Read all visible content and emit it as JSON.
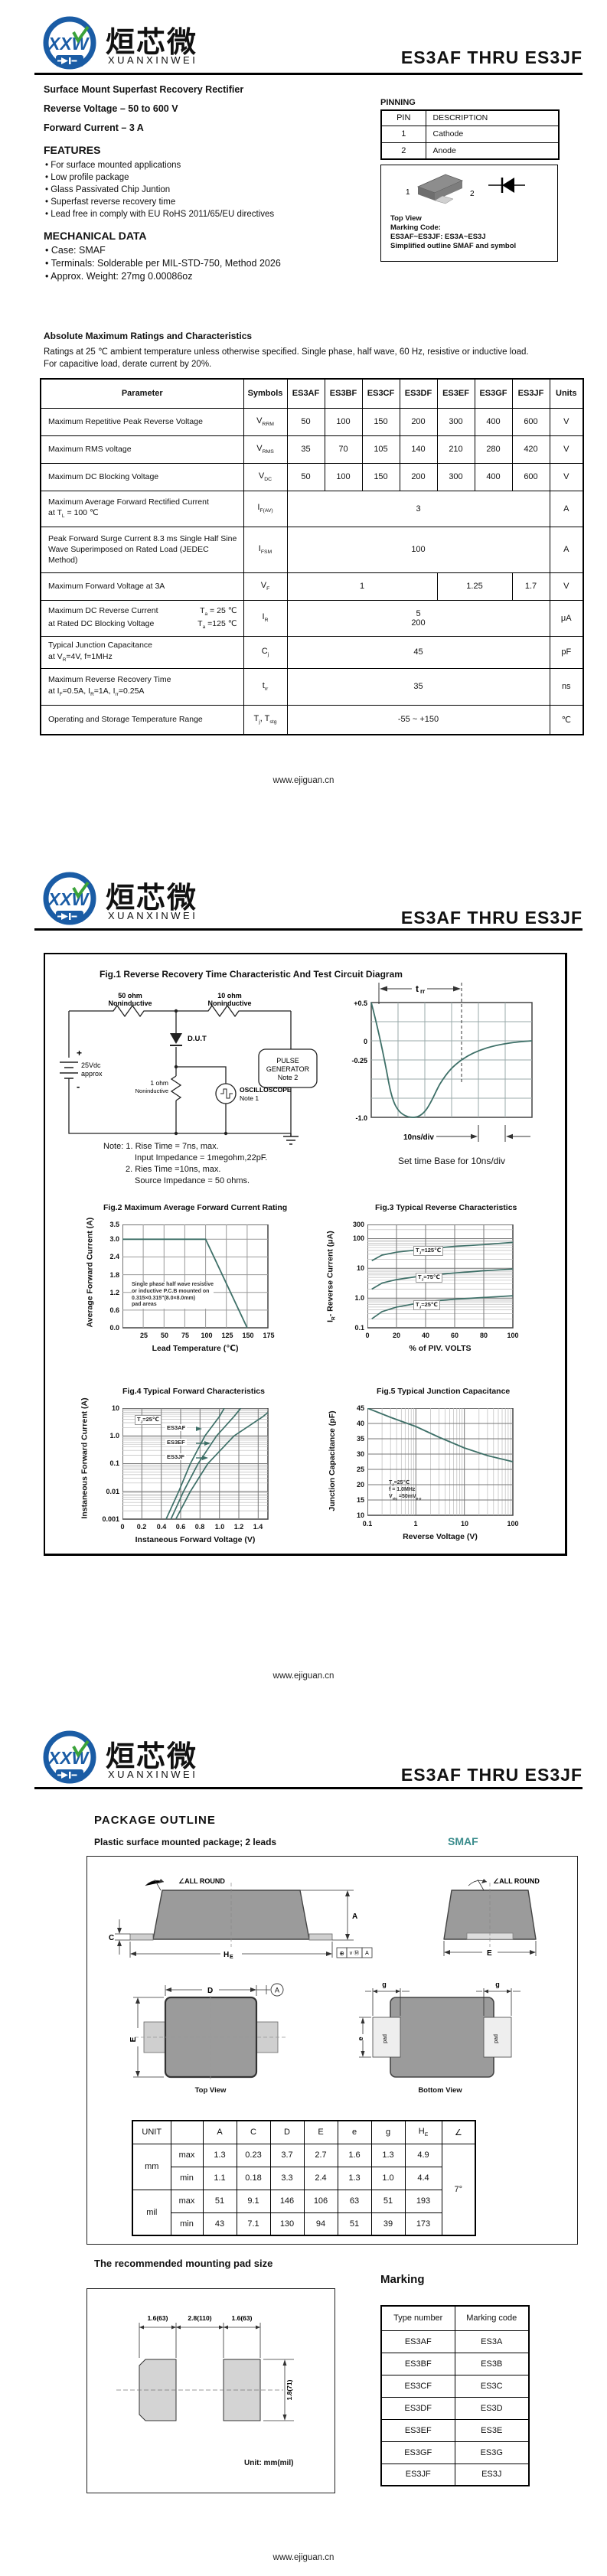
{
  "brand": {
    "cn": "烜芯微",
    "en": "XUANXINWEI",
    "logo_letters": "XXW"
  },
  "doc_title": "ES3AF THRU ES3JF",
  "footer_url": "www.ejiguan.cn",
  "colors": {
    "accent_blue": "#1a5ca5",
    "accent_green": "#3aa23a",
    "curve_teal": "#3e7068",
    "smaf_teal": "#3a8c8c"
  },
  "p1": {
    "product_title": "Surface Mount Superfast Recovery Rectifier",
    "spec_line1": "Reverse Voltage – 50 to 600 V",
    "spec_line2": "Forward Current – 3 A",
    "features_heading": "FEATURES",
    "features": [
      "For surface mounted applications",
      "Low profile package",
      "Glass Passivated Chip Juntion",
      "Superfast reverse recovery time",
      "Lead free in comply with EU RoHS 2011/65/EU directives"
    ],
    "mech_heading": "MECHANICAL DATA",
    "mech": [
      "Case: SMAF",
      "Terminals: Solderable per MIL-STD-750, Method 2026",
      "Approx. Weight: 27mg  0.00086oz"
    ],
    "pinning": {
      "heading": "PINNING",
      "h1": "PIN",
      "h2": "DESCRIPTION",
      "rows": [
        [
          "1",
          "Cathode"
        ],
        [
          "2",
          "Anode"
        ]
      ]
    },
    "outline": {
      "pin1": "1",
      "pin2": "2",
      "cap1": "Top View",
      "cap2": "Marking Code:",
      "cap3": "ES3AF~ES3JF: ES3A~ES3J",
      "cap4": "Simplified outline SMAF and symbol"
    },
    "ratings": {
      "heading": "Absolute Maximum Ratings and Characteristics",
      "desc1": "Ratings at 25 ℃ ambient temperature unless otherwise specified. Single phase, half wave, 60 Hz, resistive or inductive load.",
      "desc2": "For capacitive load, derate current by 20%.",
      "headers": [
        "Parameter",
        "Symbols",
        "ES3AF",
        "ES3BF",
        "ES3CF",
        "ES3DF",
        "ES3EF",
        "ES3GF",
        "ES3JF",
        "Units"
      ],
      "r1": {
        "p": "Maximum Repetitive Peak Reverse Voltage",
        "s": "V~RRM~",
        "v": [
          "50",
          "100",
          "150",
          "200",
          "300",
          "400",
          "600"
        ],
        "u": "V"
      },
      "r2": {
        "p": "Maximum RMS voltage",
        "s": "V~RMS~",
        "v": [
          "35",
          "70",
          "105",
          "140",
          "210",
          "280",
          "420"
        ],
        "u": "V"
      },
      "r3": {
        "p": "Maximum DC Blocking Voltage",
        "s": "V~DC~",
        "v": [
          "50",
          "100",
          "150",
          "200",
          "300",
          "400",
          "600"
        ],
        "u": "V"
      },
      "r4": {
        "p1": "Maximum Average Forward Rectified Current",
        "p2": "at T~L~ = 100 ℃",
        "s": "I~F(AV)~",
        "v": "3",
        "u": "A"
      },
      "r5": {
        "p": "Peak Forward Surge Current 8.3 ms Single Half Sine Wave Superimposed on Rated Load (JEDEC Method)",
        "s": "I~FSM~",
        "v": "100",
        "u": "A"
      },
      "r6": {
        "p": "Maximum  Forward Voltage at 3A",
        "s": "V~F~",
        "v1": "1",
        "v2": "1.25",
        "v3": "1.7",
        "u": "V"
      },
      "r7": {
        "p1a": "Maximum DC Reverse Current",
        "p1b": "T~a~ = 25 ℃",
        "p2a": "at Rated DC Blocking Voltage",
        "p2b": "T~a~ =125 ℃",
        "s": "I~R~",
        "va": "5",
        "vb": "200",
        "u": "μA"
      },
      "r8": {
        "p1": "Typical Junction Capacitance",
        "p2": "at V~R~=4V, f=1MHz",
        "s": "C~j~",
        "v": "45",
        "u": "pF"
      },
      "r9": {
        "p1": "Maximum Reverse Recovery Time",
        "p2": "at I~F~=0.5A, I~R~=1A, I~rr~=0.25A",
        "s": "t~rr~",
        "v": "35",
        "u": "ns"
      },
      "r10": {
        "p": "Operating and Storage Temperature Range",
        "s": "T~j~, T~stg~",
        "v": "-55 ~ +150",
        "u": "℃"
      }
    }
  },
  "p2": {
    "fig1": {
      "title": "Fig.1  Reverse Recovery Time Characteristic And Test Circuit Diagram",
      "circuit": {
        "r1a": "50 ohm",
        "r1b": "Noninductive",
        "r2a": "10 ohm",
        "r2b": "Noninductive",
        "plus": "+",
        "bat1": "25Vdc",
        "bat2": "approx",
        "minus": "-",
        "dut": "D.U.T",
        "r3a": "1 ohm",
        "r3b": "Noninductive",
        "osc1": "OSCILLOSCOPE",
        "osc2": "Note 1",
        "pg1": "PULSE",
        "pg2": "GENERATOR",
        "pg3": "Note 2"
      },
      "wave": {
        "yt0": "+0.5",
        "yt1": "0",
        "yt2": "-0.25",
        "yt3": "-1.0",
        "trr_main": "t",
        "trr_sub": "rr",
        "div": "10ns/div",
        "caption": "Set time Base for 10ns/div"
      },
      "notes": [
        "Note: 1. Rise Time = 7ns, max.",
        "Input Impedance = 1megohm,22pF.",
        "2. Ries Time =10ns, max.",
        "Source Impedance = 50 ohms."
      ]
    },
    "fig2": {
      "title": "Fig.2  Maximum Average Forward Current Rating",
      "ylabel": "Average Forward Current (A)",
      "xlabel": "Lead Temperature (℃)",
      "yticks": [
        "3.5",
        "3.0",
        "2.4",
        "1.8",
        "1.2",
        "0.6",
        "0.0"
      ],
      "xticks": [
        "25",
        "50",
        "75",
        "100",
        "125",
        "150",
        "175"
      ],
      "ann": [
        "Single phase half wave resistive",
        "or inductive P.C.B mounted on",
        "0.315×0.315\"(8.0×8.0mm)",
        "pad  areas"
      ]
    },
    "fig3": {
      "title": "Fig.3  Typical Reverse Characteristics",
      "ylabel": "I~R~- Reverse Current (μA)",
      "xlabel": "% of PIV. VOLTS",
      "yticks": [
        "300",
        "100",
        "10",
        "1.0",
        "0.1"
      ],
      "xticks": [
        "0",
        "20",
        "40",
        "60",
        "80",
        "100"
      ],
      "l125": "T~J~=125℃",
      "l75": "T~J~=75℃",
      "l25": "T~J~=25℃"
    },
    "fig4": {
      "title": "Fig.4  Typical Forward Characteristics",
      "ylabel": "Instaneous Forward Current (A)",
      "xlabel": "Instaneous Forward Voltage (V)",
      "yticks": [
        "10",
        "1.0",
        "0.1",
        "0.01",
        "0.001"
      ],
      "xticks": [
        "0",
        "0.2",
        "0.4",
        "0.6",
        "0.8",
        "1.0",
        "1.2",
        "1.4"
      ],
      "cond": "T~J~=25℃",
      "lA": "ES3AF",
      "lE": "ES3EF",
      "lJ": "ES3JF"
    },
    "fig5": {
      "title": "Fig.5  Typical Junction Capacitance",
      "ylabel": "Junction Capacitance (pF)",
      "xlabel": "Reverse  Voltage (V)",
      "yticks": [
        "45",
        "40",
        "35",
        "30",
        "25",
        "20",
        "15",
        "10"
      ],
      "xticks": [
        "0.1",
        "1",
        "10",
        "100"
      ],
      "ann": [
        "T~J~=25℃",
        "f = 1.0MHz",
        "V~sig~ =50mV~p-p~"
      ]
    }
  },
  "p3": {
    "heading": "PACKAGE  OUTLINE",
    "sub": "Plastic surface mounted package; 2 leads",
    "pkg": "SMAF",
    "draw": {
      "allround": "∠ALL ROUND",
      "c": "C",
      "a": "A",
      "he_main": "H",
      "he_sub": "E",
      "e": "E",
      "d": "D",
      "g": "g",
      "e_low": "e",
      "pad": "pad",
      "top_view": "Top View",
      "bottom_view": "Bottom View",
      "datum": "A",
      "tol1": "⊕",
      "tol2": "v Ⓜ",
      "tol3": "A"
    },
    "dims": {
      "unit": "UNIT",
      "cols": [
        "A",
        "C",
        "D",
        "E",
        "e",
        "g",
        "H~E~",
        "∠"
      ],
      "mm": "mm",
      "mil": "mil",
      "max": "max",
      "min": "min",
      "mm_max": [
        "1.3",
        "0.23",
        "3.7",
        "2.7",
        "1.6",
        "1.3",
        "4.9"
      ],
      "mm_min": [
        "1.1",
        "0.18",
        "3.3",
        "2.4",
        "1.3",
        "1.0",
        "4.4"
      ],
      "mil_max": [
        "51",
        "9.1",
        "146",
        "106",
        "63",
        "51",
        "193"
      ],
      "mil_min": [
        "43",
        "7.1",
        "130",
        "94",
        "51",
        "39",
        "173"
      ],
      "angle": "7°"
    },
    "padout": {
      "heading": "The recommended mounting pad size",
      "d1": "1.6(63)",
      "d2": "2.8(110)",
      "d3": "1.6(63)",
      "d4": "1.8(71)",
      "unit": "Unit: mm(mil)"
    },
    "marking": {
      "heading": "Marking",
      "h1": "Type number",
      "h2": "Marking code",
      "rows": [
        [
          "ES3AF",
          "ES3A"
        ],
        [
          "ES3BF",
          "ES3B"
        ],
        [
          "ES3CF",
          "ES3C"
        ],
        [
          "ES3DF",
          "ES3D"
        ],
        [
          "ES3EF",
          "ES3E"
        ],
        [
          "ES3GF",
          "ES3G"
        ],
        [
          "ES3JF",
          "ES3J"
        ]
      ]
    }
  },
  "chart_data": [
    {
      "id": "fig1_waveform",
      "type": "line",
      "title": "Reverse Recovery Time Characteristic",
      "xlabel": "time (10ns/div)",
      "ylabel": "current (A)",
      "ylim": [
        -1.0,
        0.5
      ],
      "x": [
        0,
        5,
        10,
        15,
        20,
        25,
        30,
        40,
        50,
        60
      ],
      "values": [
        0.5,
        0.05,
        -0.5,
        -0.9,
        -1.0,
        -0.8,
        -0.55,
        -0.3,
        -0.15,
        -0.05
      ],
      "annotations": [
        "trr",
        "10ns/div",
        "Set time Base for 10ns/div"
      ]
    },
    {
      "id": "fig2",
      "type": "line",
      "title": "Maximum Average Forward Current Rating",
      "xlabel": "Lead Temperature (°C)",
      "ylabel": "Average Forward Current (A)",
      "xlim": [
        0,
        175
      ],
      "ylim": [
        0,
        3.5
      ],
      "x": [
        0,
        100,
        150
      ],
      "values": [
        3.0,
        3.0,
        0.0
      ],
      "annotation": "Single phase half wave resistive or inductive P.C.B mounted on 0.315×0.315\"(8.0×8.0mm) pad areas",
      "grid": true
    },
    {
      "id": "fig3",
      "type": "line",
      "log_y": true,
      "title": "Typical Reverse Characteristics",
      "xlabel": "% of PIV VOLTS",
      "ylabel": "IR - Reverse Current (uA)",
      "xlim": [
        0,
        100
      ],
      "ylim": [
        0.1,
        300
      ],
      "x": [
        3,
        20,
        40,
        60,
        80,
        100
      ],
      "series": [
        {
          "name": "TJ=125C",
          "values": [
            18,
            35,
            45,
            55,
            63,
            75
          ]
        },
        {
          "name": "TJ=75C",
          "values": [
            2,
            4.2,
            5.8,
            7,
            8.3,
            9.5
          ]
        },
        {
          "name": "TJ=25C",
          "values": [
            0.2,
            0.5,
            0.75,
            0.92,
            1.05,
            1.2
          ]
        }
      ],
      "grid": true
    },
    {
      "id": "fig4",
      "type": "line",
      "log_y": true,
      "title": "Typical Forward Characteristics",
      "xlabel": "Instaneous Forward Voltage (V)",
      "ylabel": "Instaneous Forward Current (A)",
      "condition": "TJ=25C",
      "xlim": [
        0,
        1.5
      ],
      "ylim": [
        0.001,
        10
      ],
      "series": [
        {
          "name": "ES3AF",
          "x": [
            0.45,
            0.58,
            0.7,
            0.85,
            1.0,
            1.05
          ],
          "values": [
            0.001,
            0.01,
            0.1,
            1,
            5,
            10
          ]
        },
        {
          "name": "ES3EF",
          "x": [
            0.5,
            0.63,
            0.78,
            0.97,
            1.15,
            1.22
          ],
          "values": [
            0.001,
            0.01,
            0.1,
            1,
            5,
            10
          ]
        },
        {
          "name": "ES3JF",
          "x": [
            0.55,
            0.7,
            0.88,
            1.15,
            1.45,
            1.5
          ],
          "values": [
            0.001,
            0.01,
            0.1,
            1,
            5,
            7
          ]
        }
      ],
      "grid": true
    },
    {
      "id": "fig5",
      "type": "line",
      "log_x": true,
      "title": "Typical Junction Capacitance",
      "xlabel": "Reverse Voltage (V)",
      "ylabel": "Junction Capacitance (pF)",
      "condition": "TJ=25C, f=1.0MHz, Vsig=50mVp-p",
      "xlim": [
        0.1,
        100
      ],
      "ylim": [
        10,
        45
      ],
      "x": [
        0.1,
        0.3,
        1,
        3,
        10,
        30,
        100
      ],
      "values": [
        45,
        42,
        39,
        35.5,
        32,
        29.5,
        27.5
      ],
      "grid": true
    }
  ]
}
